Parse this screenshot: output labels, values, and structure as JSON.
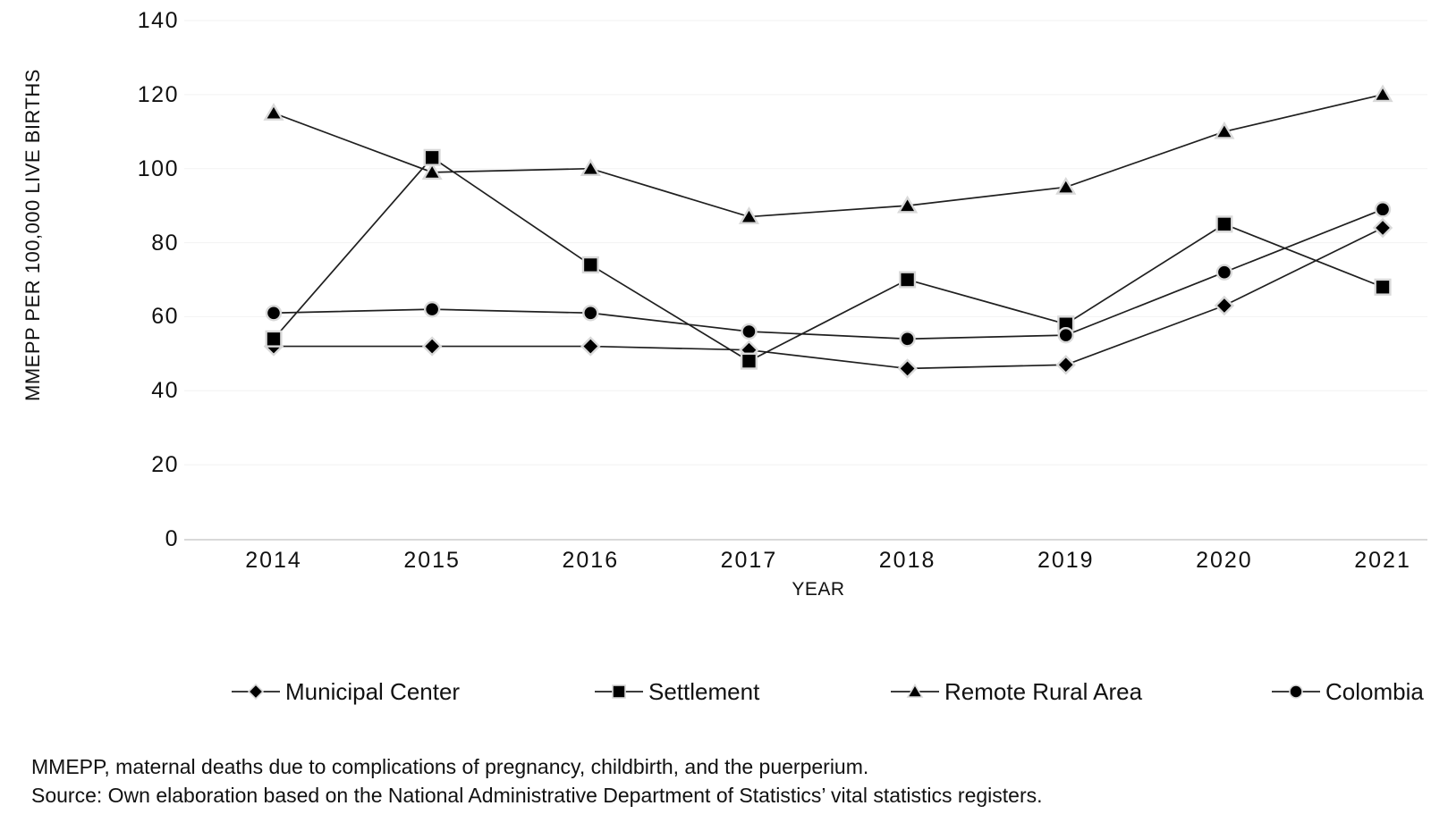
{
  "chart_data": {
    "type": "line",
    "title": "",
    "xlabel": "YEAR",
    "ylabel": "MMEPP PER 100,000 LIVE BIRTHS",
    "categories": [
      "2014",
      "2015",
      "2016",
      "2017",
      "2018",
      "2019",
      "2020",
      "2021"
    ],
    "ylim": [
      0,
      140
    ],
    "yticks": [
      0,
      20,
      40,
      60,
      80,
      100,
      120,
      140
    ],
    "grid": "faint-horizontal",
    "legend_position": "bottom",
    "series": [
      {
        "name": "Municipal Center",
        "marker": "diamond",
        "values": [
          52,
          52,
          52,
          51,
          46,
          47,
          63,
          84
        ]
      },
      {
        "name": "Settlement",
        "marker": "square",
        "values": [
          54,
          103,
          74,
          48,
          70,
          58,
          85,
          68
        ]
      },
      {
        "name": "Remote Rural Area",
        "marker": "triangle",
        "values": [
          115,
          99,
          100,
          87,
          90,
          95,
          110,
          120
        ]
      },
      {
        "name": "Colombia",
        "marker": "circle",
        "values": [
          61,
          62,
          61,
          56,
          54,
          55,
          72,
          89
        ]
      }
    ]
  },
  "footnotes": [
    "MMEPP, maternal deaths due to complications of pregnancy, childbirth, and the puerperium.",
    "Source: Own elaboration based on the National Administrative Department of Statistics’ vital statistics registers."
  ],
  "colors": {
    "series_line": "#1f1f1f",
    "marker_fill": "#000000",
    "marker_halo": "#d9d9d9",
    "axis_line": "#d9d9d9",
    "gridline": "#f2f2f2",
    "text": "#111111",
    "background": "#ffffff"
  }
}
